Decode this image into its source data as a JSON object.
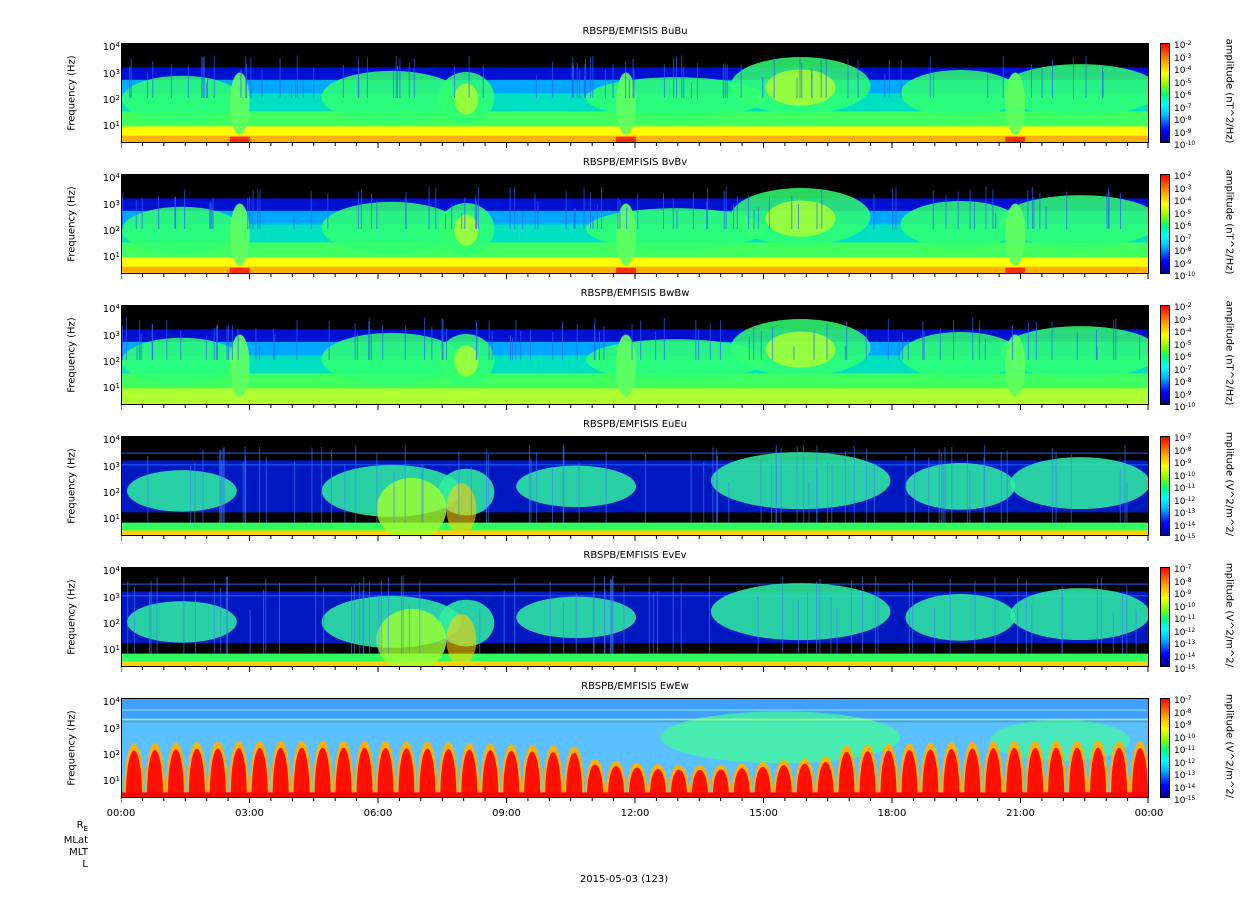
{
  "chart_data": {
    "type": "heatmap",
    "panels": [
      {
        "title": "RBSPB/EMFISIS  BuBu",
        "ylabel": "Frequency (Hz)",
        "cbar_label": "amplitude (nT^2/Hz)",
        "cbar_exponents": [
          "-2",
          "-3",
          "-4",
          "-5",
          "-6",
          "-7",
          "-8",
          "-9",
          "-10"
        ],
        "variant": "B"
      },
      {
        "title": "RBSPB/EMFISIS  BvBv",
        "ylabel": "Frequency (Hz)",
        "cbar_label": "amplitude (nT^2/Hz)",
        "cbar_exponents": [
          "-2",
          "-3",
          "-4",
          "-5",
          "-6",
          "-7",
          "-8",
          "-9",
          "-10"
        ],
        "variant": "B"
      },
      {
        "title": "RBSPB/EMFISIS  BwBw",
        "ylabel": "Frequency (Hz)",
        "cbar_label": "amplitude (nT^2/Hz)",
        "cbar_exponents": [
          "-2",
          "-3",
          "-4",
          "-5",
          "-6",
          "-7",
          "-8",
          "-9",
          "-10"
        ],
        "variant": "Bw"
      },
      {
        "title": "RBSPB/EMFISIS  EuEu",
        "ylabel": "Frequency (Hz)",
        "cbar_label": "mplitude (V^2/m^2/",
        "cbar_exponents": [
          "-7",
          "-8",
          "-9",
          "-10",
          "-11",
          "-12",
          "-13",
          "-14",
          "-15"
        ],
        "variant": "E"
      },
      {
        "title": "RBSPB/EMFISIS  EvEv",
        "ylabel": "Frequency (Hz)",
        "cbar_label": "mplitude (V^2/m^2/",
        "cbar_exponents": [
          "-7",
          "-8",
          "-9",
          "-10",
          "-11",
          "-12",
          "-13",
          "-14",
          "-15"
        ],
        "variant": "E"
      },
      {
        "title": "RBSPB/EMFISIS  EwEw",
        "ylabel": "Frequency (Hz)",
        "cbar_label": "mplitude (V^2/m^2/",
        "cbar_exponents": [
          "-7",
          "-8",
          "-9",
          "-10",
          "-11",
          "-12",
          "-13",
          "-14",
          "-15"
        ],
        "variant": "Ew"
      }
    ],
    "y_axis": {
      "scale": "log",
      "range_hz": [
        2,
        12000
      ],
      "tick_base": "10",
      "tick_exponents": [
        "4",
        "3",
        "2",
        "1"
      ]
    },
    "x_axis": {
      "range": [
        "00:00",
        "24:00"
      ],
      "tick_labels": [
        "00:00",
        "03:00",
        "06:00",
        "09:00",
        "12:00",
        "15:00",
        "18:00",
        "21:00",
        "00:00"
      ]
    },
    "ephemeris_labels": [
      "R",
      "MLat",
      "MLT",
      "L"
    ],
    "ephemeris_subscript": "E",
    "date_label": "2015-05-03 (123)"
  }
}
